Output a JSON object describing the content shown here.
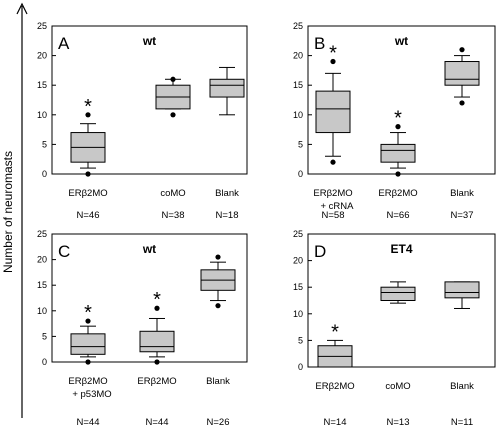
{
  "figure": {
    "ylabel": "Number of neuromasts"
  },
  "chart_data": [
    {
      "type": "box",
      "panel_label": "A",
      "title": "wt",
      "categories": [
        "ERβ2MO",
        "coMO",
        "Blank"
      ],
      "category_sublabels": [
        "",
        "",
        ""
      ],
      "n_labels": [
        "N=46",
        "N=38",
        "N=18"
      ],
      "ylim": [
        0,
        25
      ],
      "yticks": [
        0,
        5,
        10,
        15,
        20,
        25
      ],
      "boxes": [
        {
          "whisker_low": 1,
          "q1": 2,
          "median": 4.5,
          "q3": 7,
          "whisker_high": 8.5,
          "outliers": [
            0,
            10
          ],
          "significant": true
        },
        {
          "whisker_low": 11,
          "q1": 11,
          "median": 13,
          "q3": 15,
          "whisker_high": 16,
          "outliers": [
            10,
            16
          ],
          "significant": false
        },
        {
          "whisker_low": 10,
          "q1": 13,
          "median": 15,
          "q3": 16,
          "whisker_high": 18,
          "outliers": [],
          "significant": false
        }
      ]
    },
    {
      "type": "box",
      "panel_label": "B",
      "title": "wt",
      "categories": [
        "ERβ2MO",
        "ERβ2MO",
        "Blank"
      ],
      "category_sublabels": [
        "+ cRNA",
        "",
        ""
      ],
      "n_labels": [
        "N=58",
        "N=66",
        "N=37"
      ],
      "ylim": [
        0,
        25
      ],
      "yticks": [
        0,
        5,
        10,
        15,
        20,
        25
      ],
      "boxes": [
        {
          "whisker_low": 3,
          "q1": 7,
          "median": 11,
          "q3": 14,
          "whisker_high": 17,
          "outliers": [
            2,
            19
          ],
          "significant": true
        },
        {
          "whisker_low": 1,
          "q1": 2,
          "median": 4,
          "q3": 5,
          "whisker_high": 7,
          "outliers": [
            0,
            8
          ],
          "significant": true
        },
        {
          "whisker_low": 13,
          "q1": 15,
          "median": 16,
          "q3": 19,
          "whisker_high": 20,
          "outliers": [
            12,
            21
          ],
          "significant": false
        }
      ]
    },
    {
      "type": "box",
      "panel_label": "C",
      "title": "wt",
      "categories": [
        "ERβ2MO",
        "ERβ2MO",
        "Blank"
      ],
      "category_sublabels": [
        "+ p53MO",
        "",
        ""
      ],
      "n_labels": [
        "N=44",
        "N=44",
        "N=26"
      ],
      "ylim": [
        0,
        25
      ],
      "yticks": [
        0,
        5,
        10,
        15,
        20,
        25
      ],
      "boxes": [
        {
          "whisker_low": 1,
          "q1": 1.5,
          "median": 3,
          "q3": 5.5,
          "whisker_high": 7,
          "outliers": [
            0,
            8
          ],
          "significant": true
        },
        {
          "whisker_low": 1,
          "q1": 2,
          "median": 3,
          "q3": 6,
          "whisker_high": 8.5,
          "outliers": [
            0,
            10.5
          ],
          "significant": true
        },
        {
          "whisker_low": 12,
          "q1": 14,
          "median": 16,
          "q3": 18,
          "whisker_high": 19.5,
          "outliers": [
            11,
            20.5
          ],
          "significant": false
        }
      ]
    },
    {
      "type": "box",
      "panel_label": "D",
      "title": "ET4",
      "categories": [
        "ERβ2MO",
        "coMO",
        "Blank"
      ],
      "category_sublabels": [
        "",
        "",
        ""
      ],
      "n_labels": [
        "N=14",
        "N=13",
        "N=11"
      ],
      "ylim": [
        0,
        25
      ],
      "yticks": [
        0,
        5,
        10,
        15,
        20,
        25
      ],
      "boxes": [
        {
          "whisker_low": 0,
          "q1": 0,
          "median": 2,
          "q3": 4,
          "whisker_high": 5,
          "outliers": [],
          "significant": true
        },
        {
          "whisker_low": 12,
          "q1": 12.5,
          "median": 14,
          "q3": 15,
          "whisker_high": 16,
          "outliers": [],
          "significant": false
        },
        {
          "whisker_low": 11,
          "q1": 13,
          "median": 14,
          "q3": 16,
          "whisker_high": 16,
          "outliers": [],
          "significant": false
        }
      ]
    }
  ]
}
